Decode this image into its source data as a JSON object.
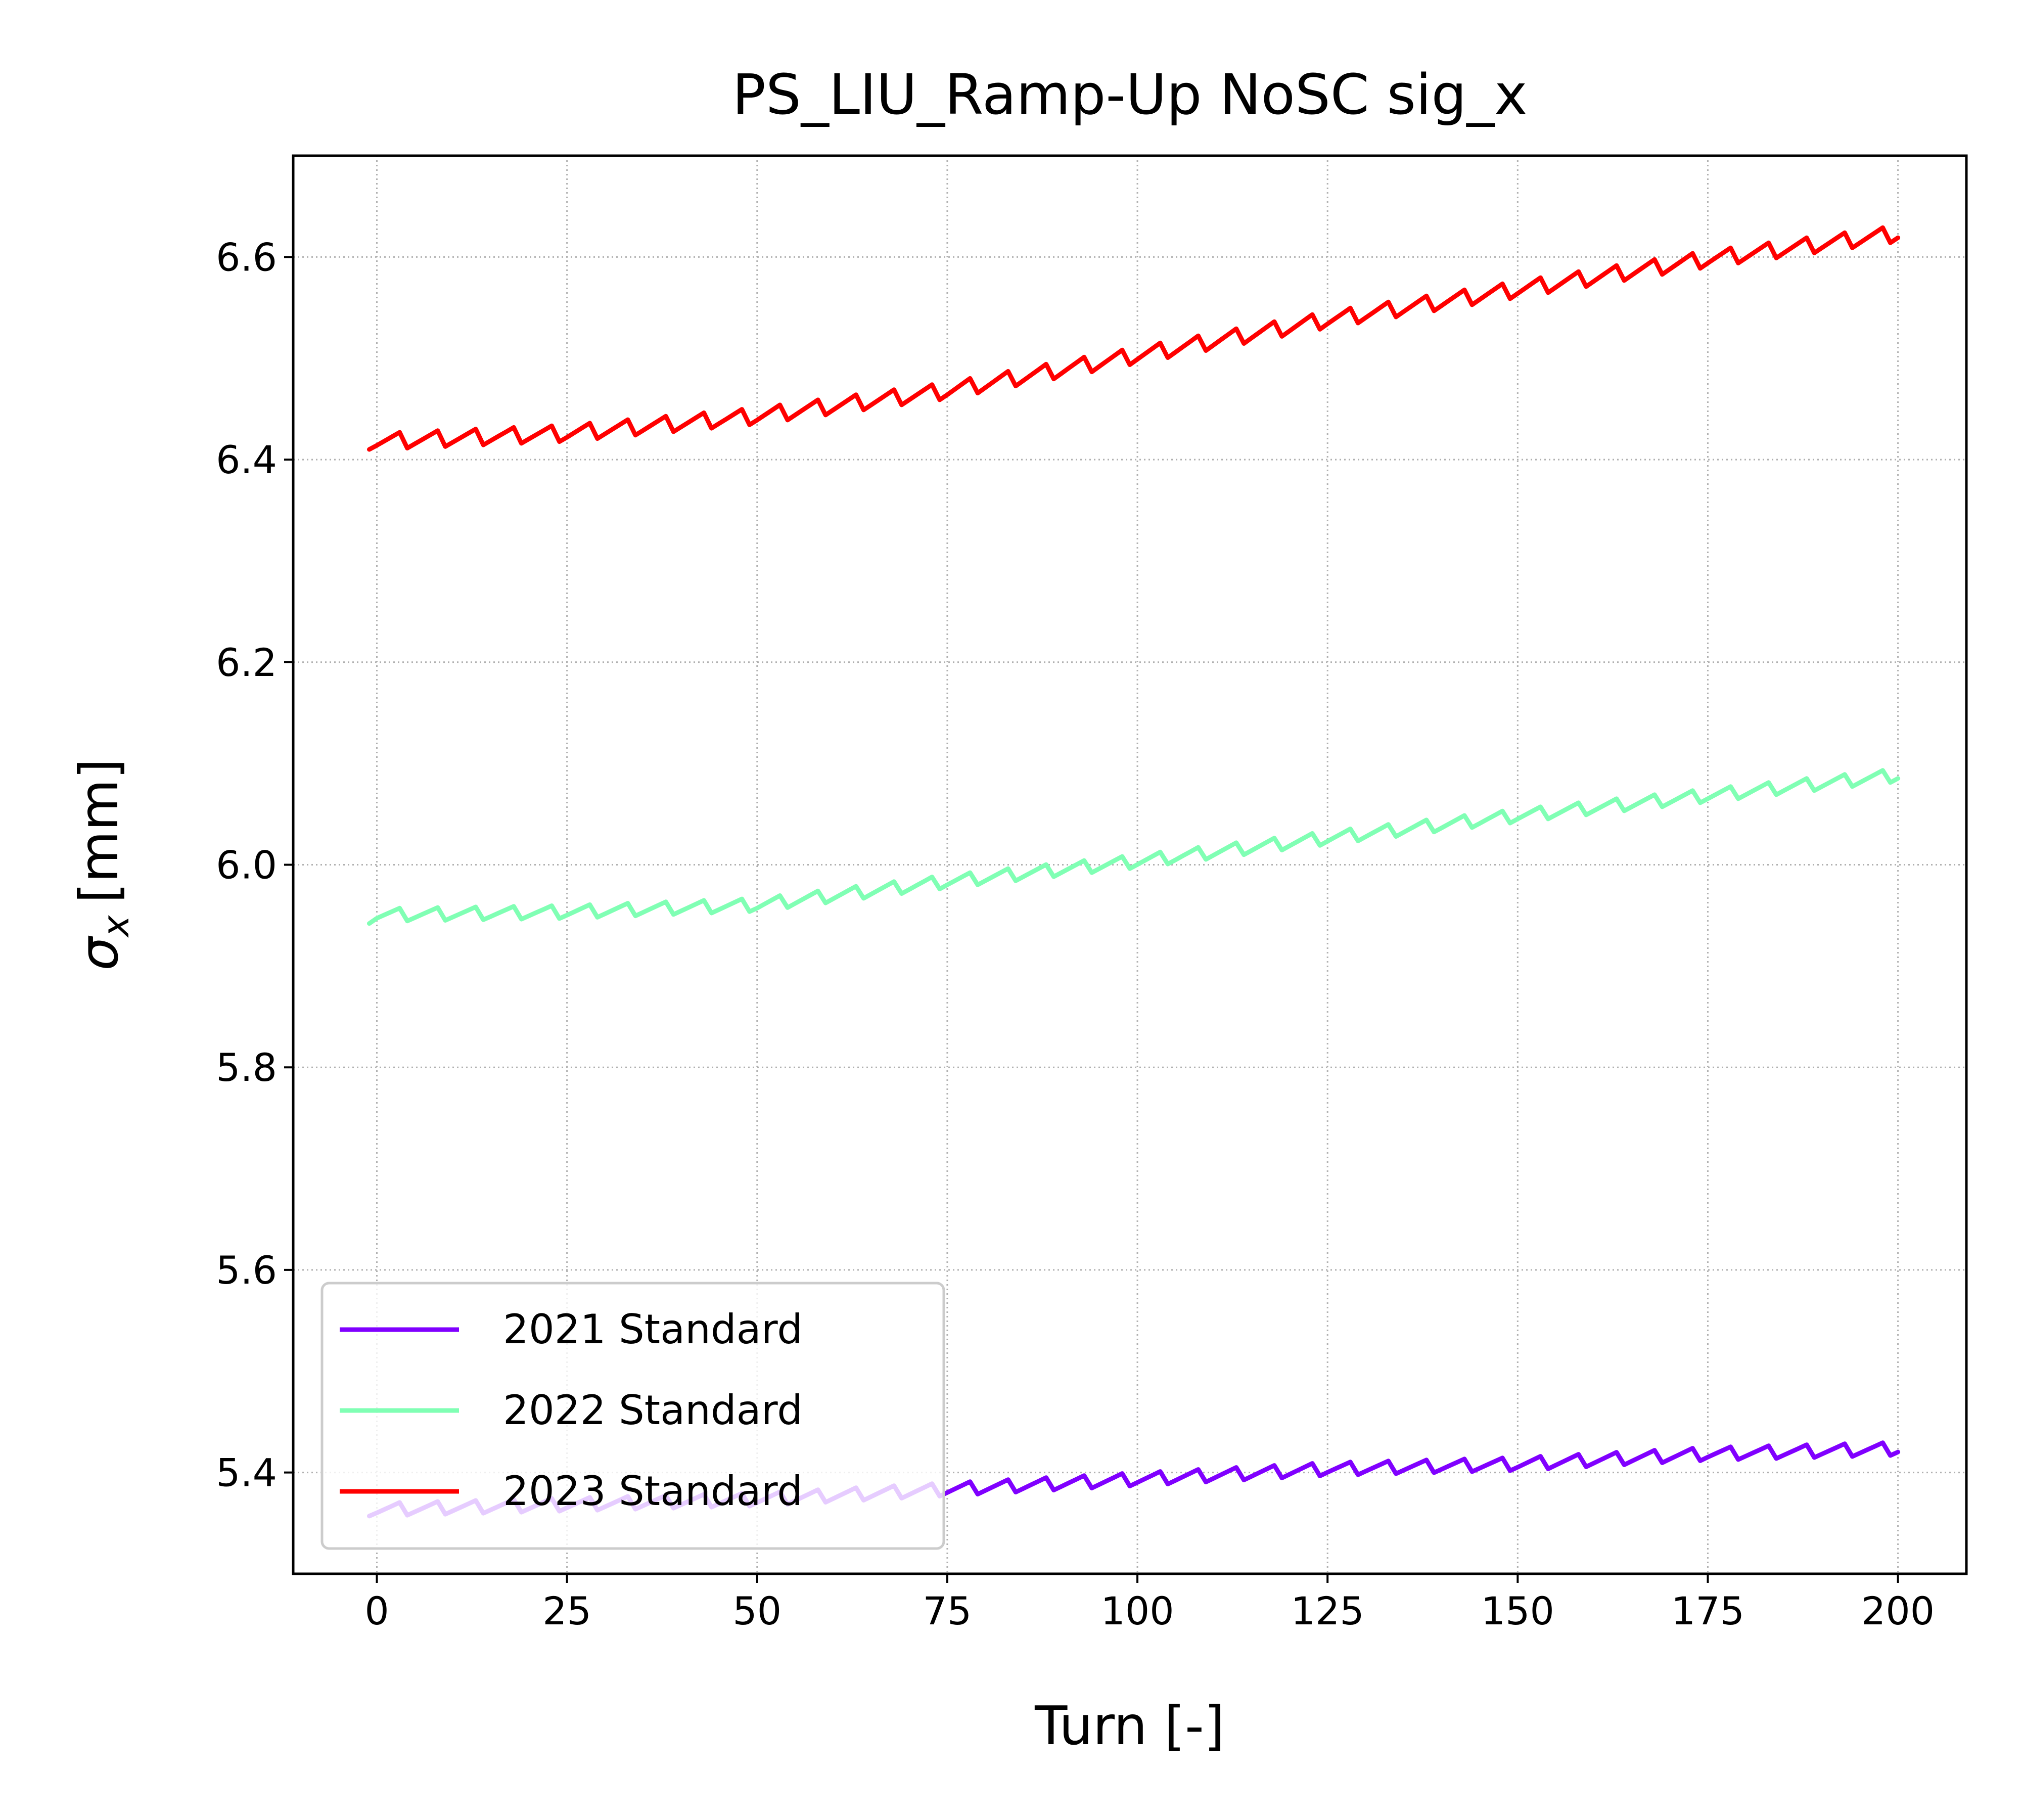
{
  "chart_data": {
    "type": "line",
    "title": "PS_LIU_Ramp-Up NoSC sig_x",
    "xlabel": "Turn [-]",
    "ylabel_symbol": "σ",
    "ylabel_subscript": "x",
    "ylabel_unit": "[mm]",
    "xlim": [
      -11,
      209
    ],
    "ylim": [
      5.3,
      6.7
    ],
    "xticks": [
      0,
      25,
      50,
      75,
      100,
      125,
      150,
      175,
      200
    ],
    "xtick_labels": [
      "0",
      "25",
      "50",
      "75",
      "100",
      "125",
      "150",
      "175",
      "200"
    ],
    "yticks": [
      5.4,
      5.6,
      5.8,
      6.0,
      6.2,
      6.4,
      6.6
    ],
    "ytick_labels": [
      "5.4",
      "5.6",
      "5.8",
      "6.0",
      "6.2",
      "6.4",
      "6.6"
    ],
    "grid": true,
    "legend_position": "lower-left",
    "oscillation_period": 5,
    "series": [
      {
        "name": "2021 Standard",
        "color": "#8000ff",
        "x": [
          -1,
          0,
          25,
          50,
          75,
          100,
          125,
          150,
          175,
          200
        ],
        "values": [
          5.365,
          5.365,
          5.37,
          5.375,
          5.385,
          5.395,
          5.405,
          5.41,
          5.42,
          5.425
        ],
        "oscillation_amplitude": 0.008
      },
      {
        "name": "2022 Standard",
        "color": "#80ffb4",
        "x": [
          -1,
          0,
          25,
          50,
          75,
          100,
          125,
          150,
          175,
          200
        ],
        "values": [
          5.95,
          5.952,
          5.955,
          5.962,
          5.985,
          6.005,
          6.028,
          6.05,
          6.07,
          6.09
        ],
        "oscillation_amplitude": 0.008
      },
      {
        "name": "2023 Standard",
        "color": "#ff0000",
        "x": [
          -1,
          0,
          25,
          50,
          75,
          100,
          125,
          150,
          175,
          200
        ],
        "values": [
          6.42,
          6.42,
          6.428,
          6.445,
          6.47,
          6.505,
          6.54,
          6.57,
          6.6,
          6.625
        ],
        "oscillation_amplitude": 0.01
      }
    ]
  }
}
